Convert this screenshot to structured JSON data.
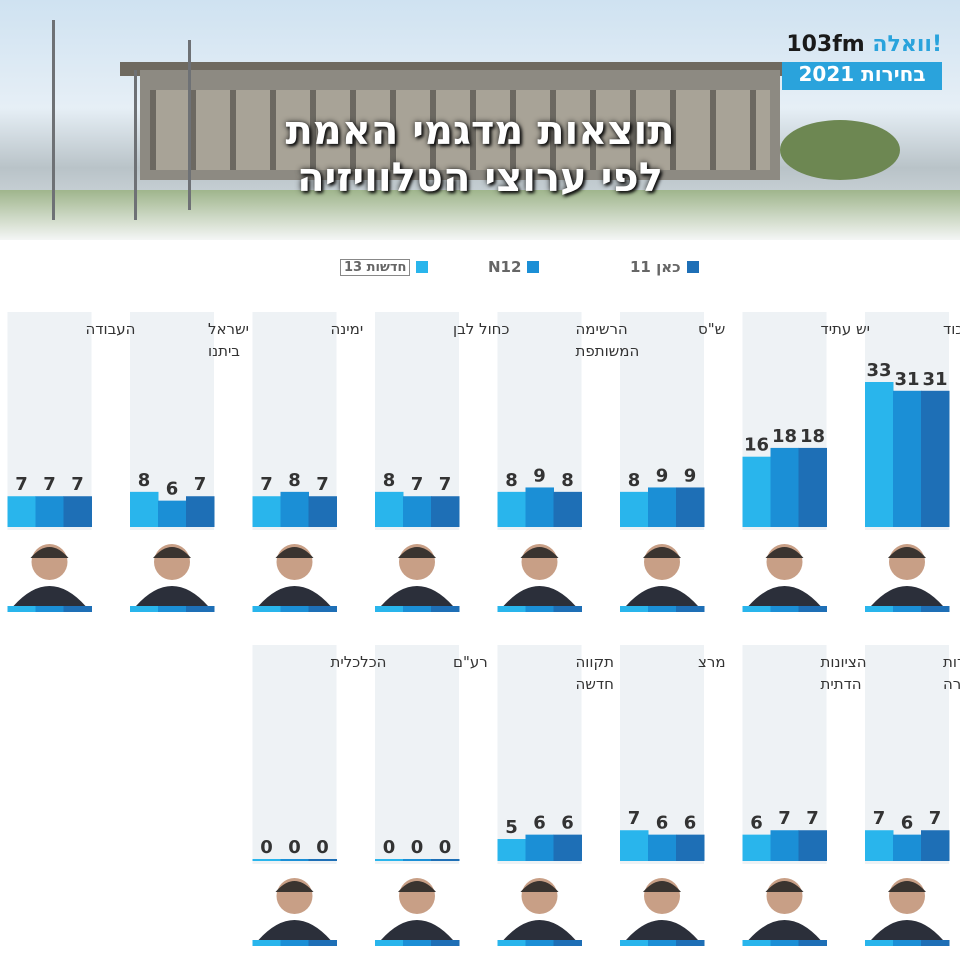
{
  "logo": {
    "brand": "וואלה!",
    "station": "103fm",
    "subtitle": "בחירות 2021"
  },
  "title": {
    "line1": "תוצאות מדגמי האמת",
    "line2": "לפי ערוצי הטלוויזיה"
  },
  "colors": {
    "channel_1": "#29b5ec",
    "channel_2": "#1b8fd6",
    "channel_3": "#1e6fb6",
    "panel": "#eef2f5",
    "axis": "#333333"
  },
  "chart_data": {
    "type": "bar",
    "categories": [
      "הליכוד",
      "יש עתיד",
      "ש\"ס",
      "הרשימה המשותפת",
      "כחול לבן",
      "ימינה",
      "ישראל ביתנו",
      "העבודה",
      "יהדות התורה",
      "הציונות הדתית",
      "מרצ",
      "תקווה חדשה",
      "רע\"ם",
      "הכלכלית"
    ],
    "series": [
      {
        "name": "חדשות 13",
        "values": [
          33,
          16,
          8,
          8,
          8,
          7,
          8,
          7,
          7,
          6,
          7,
          5,
          0,
          0
        ]
      },
      {
        "name": "N12",
        "values": [
          31,
          18,
          9,
          9,
          7,
          8,
          6,
          7,
          6,
          7,
          6,
          6,
          0,
          0
        ]
      },
      {
        "name": "כאן 11",
        "values": [
          31,
          18,
          9,
          8,
          7,
          7,
          7,
          7,
          7,
          7,
          6,
          6,
          0,
          0
        ]
      }
    ],
    "legend": {
      "labels": [
        "חדשות 13",
        "N12",
        "כאן 11"
      ],
      "placement": "top"
    },
    "ylim": [
      0,
      33
    ]
  }
}
